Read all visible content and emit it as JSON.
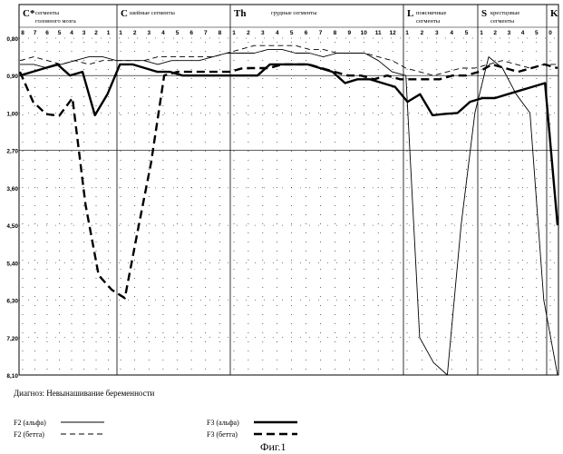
{
  "chart_data": {
    "type": "line",
    "diagnosis": "Диагноз: Невынашивание беременности",
    "figure_caption": "Фиг.1",
    "y_tick_labels": [
      "0,80",
      "0,90",
      "1,00",
      "2,70",
      "3,60",
      "4,50",
      "5,40",
      "6,30",
      "7,20",
      "8,10"
    ],
    "sections": [
      {
        "code": "C*",
        "label_lines": [
          "сегменты",
          "головного мозга"
        ],
        "ticks": [
          "8",
          "7",
          "6",
          "5",
          "4",
          "3",
          "2",
          "1"
        ]
      },
      {
        "code": "C",
        "label_lines": [
          "шейные сегменты"
        ],
        "ticks": [
          "1",
          "2",
          "3",
          "4",
          "5",
          "6",
          "7",
          "8"
        ]
      },
      {
        "code": "Th",
        "label_lines": [
          "грудные сегменты"
        ],
        "ticks": [
          "1",
          "2",
          "3",
          "4",
          "5",
          "6",
          "7",
          "8",
          "9",
          "10",
          "11",
          "12"
        ]
      },
      {
        "code": "L",
        "label_lines": [
          "поясничные",
          "сегменты"
        ],
        "ticks": [
          "1",
          "2",
          "3",
          "4",
          "5"
        ]
      },
      {
        "code": "S",
        "label_lines": [
          "крестцовые",
          "сегменты"
        ],
        "ticks": [
          "1",
          "2",
          "3",
          "4",
          "5"
        ]
      },
      {
        "code": "K",
        "label_lines": [],
        "ticks": [
          "0"
        ]
      }
    ],
    "ylim": [
      0.8,
      8.1
    ],
    "series": [
      {
        "name": "F2 (альфа)",
        "style": "thin-solid",
        "values": [
          0.87,
          0.87,
          0.88,
          0.87,
          0.86,
          0.85,
          0.85,
          0.86,
          0.86,
          0.86,
          0.87,
          0.86,
          0.86,
          0.86,
          0.85,
          0.84,
          0.84,
          0.84,
          0.83,
          0.83,
          0.84,
          0.84,
          0.85,
          0.84,
          0.84,
          0.84,
          0.86,
          0.89,
          0.9,
          7.2,
          7.8,
          8.1,
          4.5,
          1.0,
          0.85,
          0.88,
          0.95,
          1.0,
          6.3,
          8.1
        ]
      },
      {
        "name": "F2 (бетта)",
        "style": "thin-dashed",
        "values": [
          0.86,
          0.85,
          0.86,
          0.87,
          0.86,
          0.87,
          0.86,
          0.86,
          0.86,
          0.86,
          0.85,
          0.85,
          0.85,
          0.85,
          0.85,
          0.84,
          0.83,
          0.82,
          0.82,
          0.82,
          0.82,
          0.83,
          0.83,
          0.84,
          0.84,
          0.84,
          0.85,
          0.86,
          0.88,
          0.89,
          0.9,
          0.89,
          0.88,
          0.88,
          0.87,
          0.86,
          0.87,
          0.88,
          0.87,
          0.87
        ]
      },
      {
        "name": "F3 (альфа)",
        "style": "thick-solid",
        "values": [
          0.9,
          0.89,
          0.88,
          0.87,
          0.9,
          0.89,
          1.1,
          0.95,
          0.87,
          0.87,
          0.88,
          0.89,
          0.89,
          0.9,
          0.9,
          0.9,
          0.9,
          0.9,
          0.9,
          0.9,
          0.87,
          0.87,
          0.87,
          0.87,
          0.88,
          0.89,
          0.92,
          0.91,
          0.91,
          0.92,
          0.93,
          0.97,
          0.95,
          1.1,
          1.04,
          1.0,
          0.97,
          0.96,
          0.96,
          0.95,
          0.94,
          0.93,
          0.92,
          4.5
        ]
      },
      {
        "name": "F3 (бетта)",
        "style": "thick-dashed",
        "values": [
          0.89,
          0.97,
          1.05,
          1.12,
          0.96,
          4.0,
          5.7,
          6.05,
          6.25,
          4.6,
          3.0,
          0.9,
          0.89,
          0.89,
          0.89,
          0.89,
          0.89,
          0.88,
          0.88,
          0.88,
          0.87,
          0.87,
          0.87,
          0.88,
          0.89,
          0.9,
          0.9,
          0.91,
          0.9,
          0.91,
          0.91,
          0.91,
          0.91,
          0.9,
          0.9,
          0.89,
          0.87,
          0.88,
          0.89,
          0.88,
          0.87,
          0.88
        ]
      }
    ],
    "legend": [
      {
        "label": "F2 (альфа)",
        "style": "thin-solid"
      },
      {
        "label": "F2 (бетта)",
        "style": "thin-dashed"
      },
      {
        "label": "F3 (альфа)",
        "style": "thick-solid"
      },
      {
        "label": "F3 (бетта)",
        "style": "thick-dashed"
      }
    ],
    "grid": true
  }
}
